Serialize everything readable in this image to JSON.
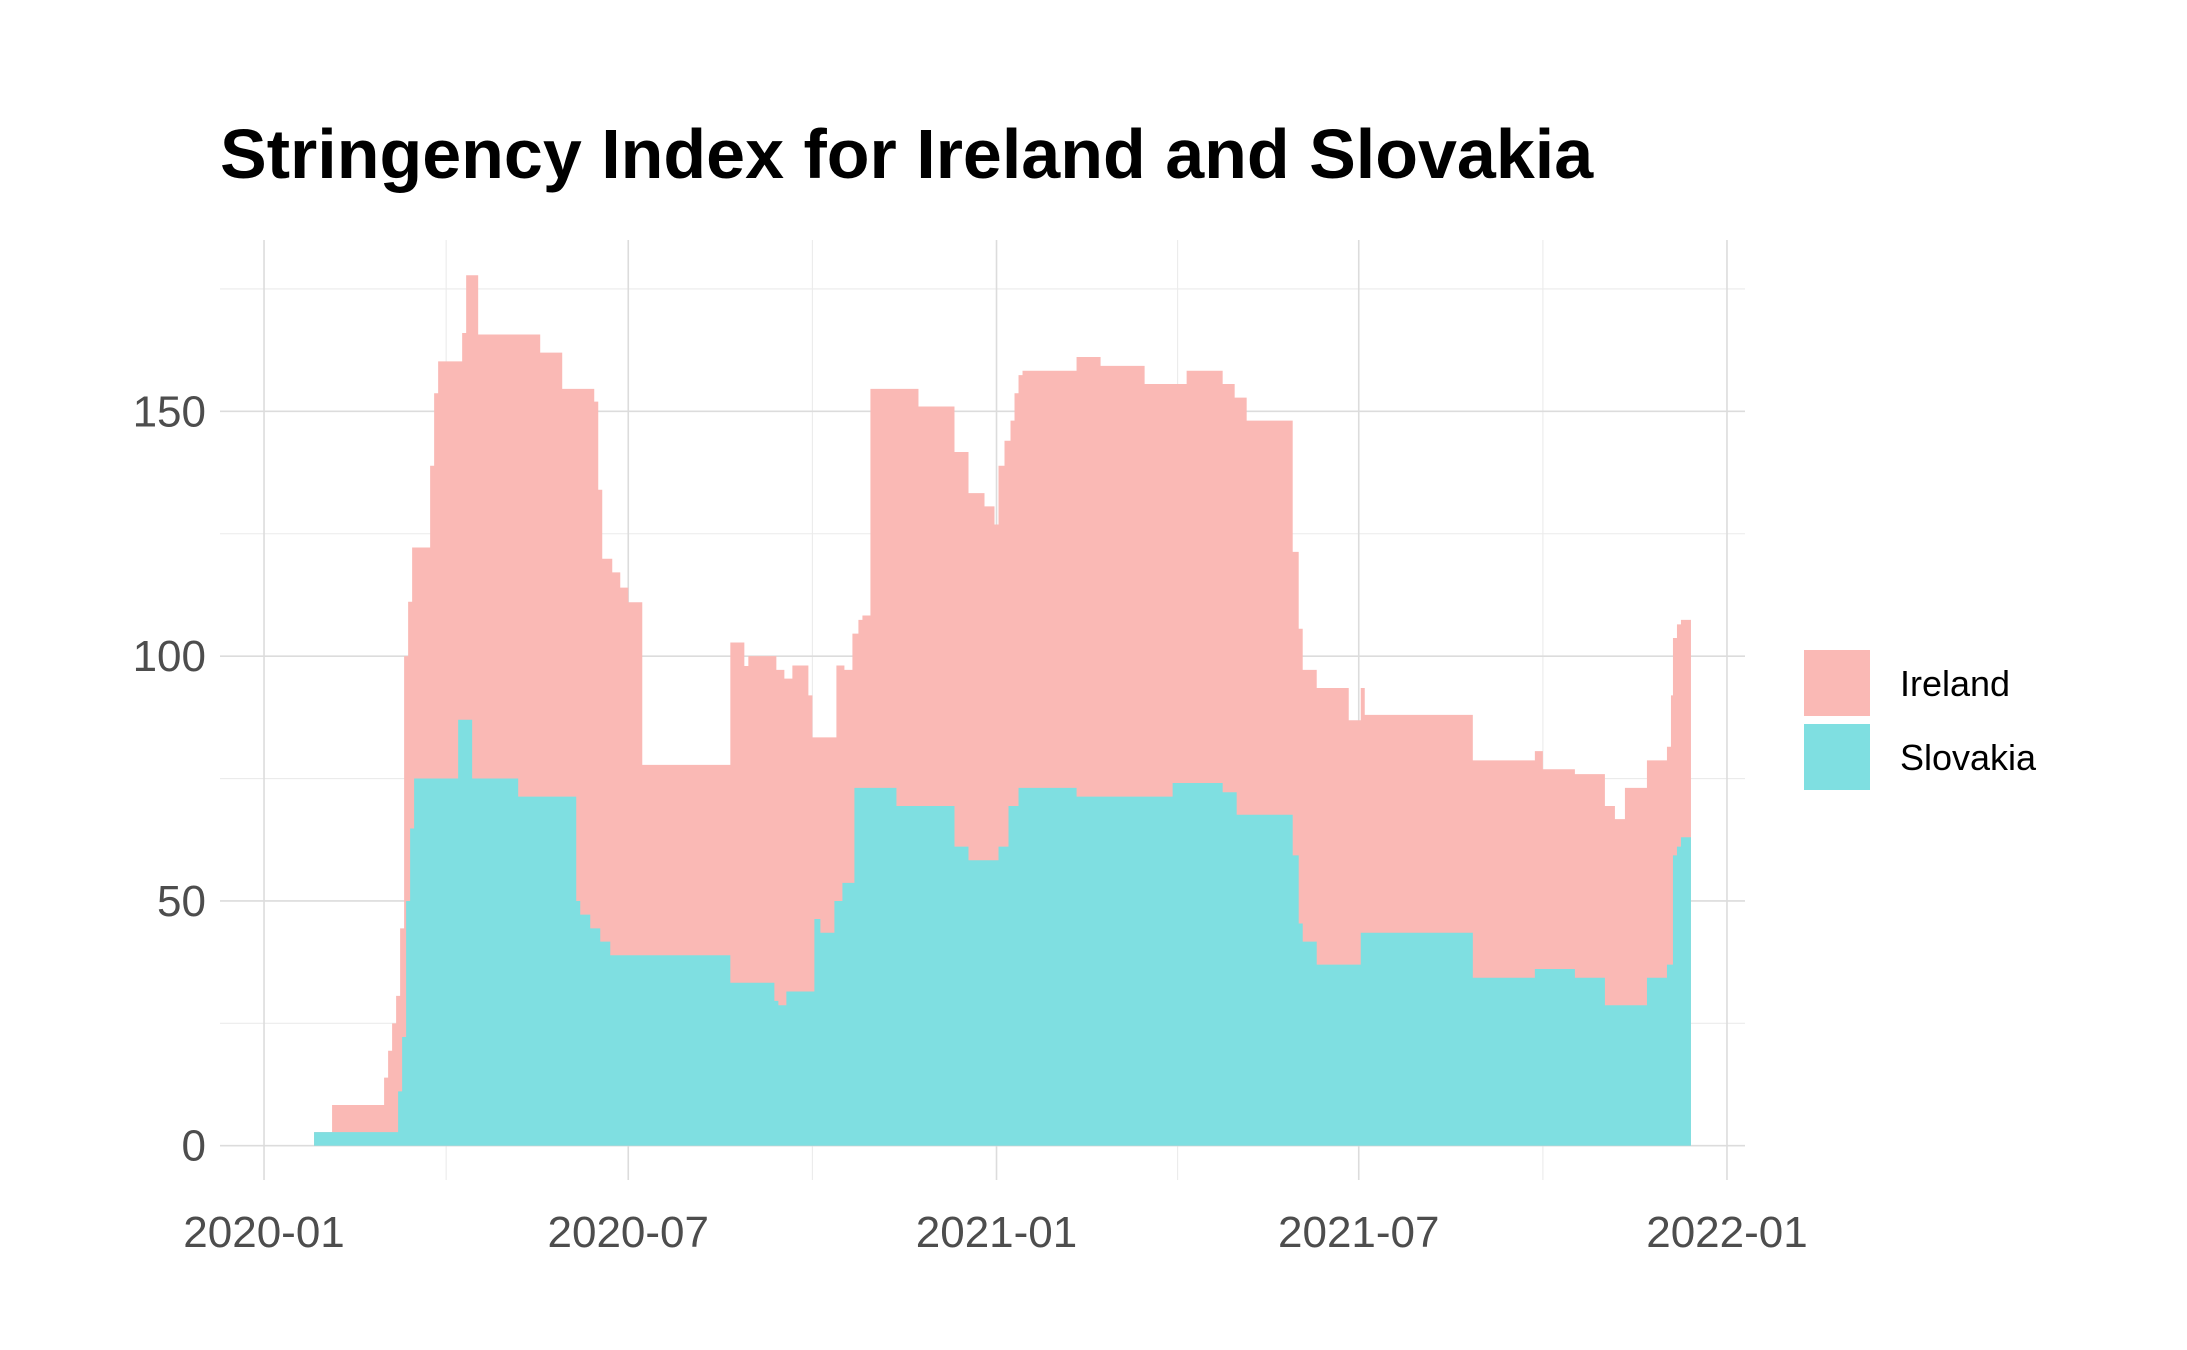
{
  "chart_data": {
    "type": "area",
    "title": "Stringency Index for Ireland and Slovakia",
    "xlabel": "",
    "ylabel": "",
    "stacked": true,
    "ylim": [
      -7,
      185
    ],
    "xlim": [
      "2019-12-10",
      "2022-01-10"
    ],
    "y_ticks": [
      0,
      50,
      100,
      150
    ],
    "y_tick_labels": [
      "0",
      "50",
      "100",
      "150"
    ],
    "x_ticks": [
      "2020-01-01",
      "2020-07-01",
      "2021-01-01",
      "2021-07-01",
      "2022-01-01"
    ],
    "x_tick_labels": [
      "2020-01",
      "2020-07",
      "2021-01",
      "2021-07",
      "2022-01"
    ],
    "grid": true,
    "legend_position": "right",
    "series": [
      {
        "name": "Slovakia",
        "color": "#7fdfe1",
        "points": [
          [
            "2020-01-26",
            2.78
          ],
          [
            "2020-03-06",
            2.78
          ],
          [
            "2020-03-08",
            11.1
          ],
          [
            "2020-03-10",
            22.2
          ],
          [
            "2020-03-12",
            50.0
          ],
          [
            "2020-03-14",
            64.8
          ],
          [
            "2020-03-16",
            75.0
          ],
          [
            "2020-04-06",
            75.0
          ],
          [
            "2020-04-07",
            87.0
          ],
          [
            "2020-04-13",
            87.0
          ],
          [
            "2020-04-14",
            75.0
          ],
          [
            "2020-05-06",
            75.0
          ],
          [
            "2020-05-07",
            71.3
          ],
          [
            "2020-06-03",
            71.3
          ],
          [
            "2020-06-05",
            50.0
          ],
          [
            "2020-06-07",
            47.2
          ],
          [
            "2020-06-12",
            44.4
          ],
          [
            "2020-06-17",
            41.7
          ],
          [
            "2020-06-22",
            38.9
          ],
          [
            "2020-08-20",
            38.9
          ],
          [
            "2020-08-21",
            33.3
          ],
          [
            "2020-09-10",
            33.3
          ],
          [
            "2020-09-12",
            29.6
          ],
          [
            "2020-09-14",
            28.7
          ],
          [
            "2020-09-18",
            31.5
          ],
          [
            "2020-10-01",
            31.5
          ],
          [
            "2020-10-02",
            46.3
          ],
          [
            "2020-10-05",
            43.5
          ],
          [
            "2020-10-12",
            50.0
          ],
          [
            "2020-10-16",
            53.7
          ],
          [
            "2020-10-22",
            73.1
          ],
          [
            "2020-11-11",
            73.1
          ],
          [
            "2020-11-12",
            69.4
          ],
          [
            "2020-12-10",
            69.4
          ],
          [
            "2020-12-11",
            61.1
          ],
          [
            "2020-12-18",
            58.3
          ],
          [
            "2021-01-01",
            58.3
          ],
          [
            "2021-01-02",
            61.1
          ],
          [
            "2021-01-07",
            69.4
          ],
          [
            "2021-01-12",
            73.1
          ],
          [
            "2021-02-09",
            73.1
          ],
          [
            "2021-02-10",
            71.3
          ],
          [
            "2021-03-29",
            71.3
          ],
          [
            "2021-03-30",
            74.1
          ],
          [
            "2021-04-23",
            74.1
          ],
          [
            "2021-04-24",
            72.2
          ],
          [
            "2021-05-01",
            67.6
          ],
          [
            "2021-05-27",
            67.6
          ],
          [
            "2021-05-29",
            59.3
          ],
          [
            "2021-06-01",
            45.4
          ],
          [
            "2021-06-03",
            41.7
          ],
          [
            "2021-06-10",
            37.0
          ],
          [
            "2021-07-01",
            37.0
          ],
          [
            "2021-07-02",
            43.5
          ],
          [
            "2021-08-26",
            43.5
          ],
          [
            "2021-08-27",
            34.3
          ],
          [
            "2021-09-26",
            34.3
          ],
          [
            "2021-09-27",
            36.1
          ],
          [
            "2021-10-16",
            36.1
          ],
          [
            "2021-10-17",
            34.3
          ],
          [
            "2021-10-31",
            34.3
          ],
          [
            "2021-11-01",
            28.7
          ],
          [
            "2021-11-21",
            28.7
          ],
          [
            "2021-11-22",
            34.3
          ],
          [
            "2021-12-02",
            37.0
          ],
          [
            "2021-12-05",
            59.3
          ],
          [
            "2021-12-07",
            61.1
          ],
          [
            "2021-12-09",
            63.0
          ],
          [
            "2021-12-14",
            63.0
          ]
        ]
      },
      {
        "name": "Ireland",
        "color": "#fab9b5",
        "points": [
          [
            "2020-01-26",
            2.78
          ],
          [
            "2020-02-03",
            2.78
          ],
          [
            "2020-02-04",
            8.33
          ],
          [
            "2020-02-29",
            8.33
          ],
          [
            "2020-03-01",
            13.9
          ],
          [
            "2020-03-03",
            19.4
          ],
          [
            "2020-03-05",
            25.0
          ],
          [
            "2020-03-07",
            30.6
          ],
          [
            "2020-03-09",
            44.4
          ],
          [
            "2020-03-11",
            100.0
          ],
          [
            "2020-03-13",
            111.1
          ],
          [
            "2020-03-15",
            122.2
          ],
          [
            "2020-03-22",
            122.2
          ],
          [
            "2020-03-24",
            138.9
          ],
          [
            "2020-03-26",
            153.7
          ],
          [
            "2020-03-28",
            160.2
          ],
          [
            "2020-04-08",
            160.2
          ],
          [
            "2020-04-09",
            166.0
          ],
          [
            "2020-04-11",
            177.8
          ],
          [
            "2020-04-15",
            177.8
          ],
          [
            "2020-04-17",
            165.7
          ],
          [
            "2020-05-17",
            165.7
          ],
          [
            "2020-05-18",
            162.0
          ],
          [
            "2020-05-28",
            162.0
          ],
          [
            "2020-05-29",
            154.6
          ],
          [
            "2020-06-12",
            154.6
          ],
          [
            "2020-06-14",
            152.0
          ],
          [
            "2020-06-16",
            134.0
          ],
          [
            "2020-06-18",
            119.9
          ],
          [
            "2020-06-23",
            117.1
          ],
          [
            "2020-06-27",
            114.0
          ],
          [
            "2020-07-01",
            111.0
          ],
          [
            "2020-07-07",
            111.0
          ],
          [
            "2020-07-08",
            77.8
          ],
          [
            "2020-08-20",
            77.8
          ],
          [
            "2020-08-21",
            102.8
          ],
          [
            "2020-08-27",
            102.8
          ],
          [
            "2020-08-28",
            98.0
          ],
          [
            "2020-08-30",
            100.0
          ],
          [
            "2020-09-12",
            100.0
          ],
          [
            "2020-09-13",
            97.2
          ],
          [
            "2020-09-17",
            95.4
          ],
          [
            "2020-09-21",
            98.1
          ],
          [
            "2020-09-27",
            98.1
          ],
          [
            "2020-09-29",
            92.0
          ],
          [
            "2020-10-01",
            83.4
          ],
          [
            "2020-10-12",
            83.4
          ],
          [
            "2020-10-13",
            98.1
          ],
          [
            "2020-10-17",
            97.2
          ],
          [
            "2020-10-21",
            104.6
          ],
          [
            "2020-10-24",
            107.4
          ],
          [
            "2020-10-26",
            108.3
          ],
          [
            "2020-10-28",
            108.3
          ],
          [
            "2020-10-30",
            154.6
          ],
          [
            "2020-11-22",
            154.6
          ],
          [
            "2020-11-23",
            151.0
          ],
          [
            "2020-12-10",
            151.0
          ],
          [
            "2020-12-11",
            141.7
          ],
          [
            "2020-12-17",
            141.7
          ],
          [
            "2020-12-18",
            133.3
          ],
          [
            "2020-12-25",
            133.3
          ],
          [
            "2020-12-26",
            130.6
          ],
          [
            "2020-12-31",
            126.9
          ],
          [
            "2021-01-01",
            126.9
          ],
          [
            "2021-01-02",
            138.9
          ],
          [
            "2021-01-05",
            144.0
          ],
          [
            "2021-01-08",
            148.1
          ],
          [
            "2021-01-10",
            153.7
          ],
          [
            "2021-01-12",
            157.4
          ],
          [
            "2021-01-14",
            158.3
          ],
          [
            "2021-02-09",
            158.3
          ],
          [
            "2021-02-10",
            161.1
          ],
          [
            "2021-02-21",
            161.1
          ],
          [
            "2021-02-22",
            159.3
          ],
          [
            "2021-03-15",
            159.3
          ],
          [
            "2021-03-16",
            155.6
          ],
          [
            "2021-04-05",
            155.6
          ],
          [
            "2021-04-06",
            158.3
          ],
          [
            "2021-04-23",
            158.3
          ],
          [
            "2021-04-24",
            155.6
          ],
          [
            "2021-04-30",
            152.8
          ],
          [
            "2021-05-06",
            148.1
          ],
          [
            "2021-05-27",
            148.1
          ],
          [
            "2021-05-29",
            121.3
          ],
          [
            "2021-06-01",
            105.6
          ],
          [
            "2021-06-03",
            97.2
          ],
          [
            "2021-06-10",
            93.5
          ],
          [
            "2021-06-25",
            93.5
          ],
          [
            "2021-06-26",
            86.9
          ],
          [
            "2021-07-01",
            86.9
          ],
          [
            "2021-07-02",
            93.5
          ],
          [
            "2021-07-04",
            88.0
          ],
          [
            "2021-08-26",
            88.0
          ],
          [
            "2021-08-27",
            78.7
          ],
          [
            "2021-09-26",
            78.7
          ],
          [
            "2021-09-27",
            80.6
          ],
          [
            "2021-10-01",
            76.9
          ],
          [
            "2021-10-16",
            76.9
          ],
          [
            "2021-10-17",
            75.9
          ],
          [
            "2021-10-31",
            75.9
          ],
          [
            "2021-11-01",
            69.4
          ],
          [
            "2021-11-06",
            66.7
          ],
          [
            "2021-11-11",
            73.1
          ],
          [
            "2021-11-21",
            73.1
          ],
          [
            "2021-11-22",
            78.7
          ],
          [
            "2021-12-02",
            81.5
          ],
          [
            "2021-12-04",
            92.0
          ],
          [
            "2021-12-05",
            103.7
          ],
          [
            "2021-12-07",
            106.5
          ],
          [
            "2021-12-09",
            107.4
          ],
          [
            "2021-12-14",
            107.4
          ]
        ]
      }
    ],
    "legend": [
      {
        "label": "Ireland",
        "color": "#fab9b5"
      },
      {
        "label": "Slovakia",
        "color": "#7fdfe1"
      }
    ]
  }
}
